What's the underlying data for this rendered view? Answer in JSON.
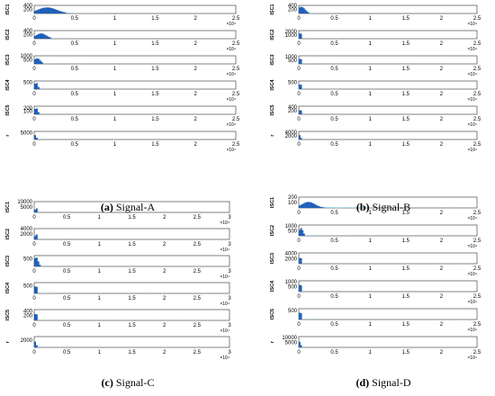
{
  "colors": {
    "bar": "#1f5fb8",
    "tail": "#6ec6e8",
    "axis": "#000000"
  },
  "chart_data": [
    {
      "type": "bar",
      "panel_letter": "(a)",
      "panel_title": "Signal-A",
      "x_max_label": "2.5",
      "x_ticks": [
        "0",
        "0.5",
        "1",
        "1.5",
        "2",
        "2.5"
      ],
      "x_exponent": "×10⁴",
      "series": [
        {
          "name": "ISC1",
          "yticks": [
            "400",
            "200"
          ],
          "ymax": 400,
          "peak": 300,
          "peak_pos": 0.06,
          "spread": 0.09,
          "tail": 0.06
        },
        {
          "name": "ISC2",
          "yticks": [
            "400",
            "200"
          ],
          "ymax": 400,
          "peak": 260,
          "peak_pos": 0.03,
          "spread": 0.05,
          "tail": 0.05
        },
        {
          "name": "ISC3",
          "yticks": [
            "1000",
            "500"
          ],
          "ymax": 1000,
          "peak": 700,
          "peak_pos": 0.01,
          "spread": 0.03,
          "tail": 0.03
        },
        {
          "name": "ISC4",
          "yticks": [
            "500"
          ],
          "ymax": 600,
          "peak": 480,
          "peak_pos": 0.005,
          "spread": 0.015,
          "tail": 0.02
        },
        {
          "name": "ISC5",
          "yticks": [
            "200",
            "100"
          ],
          "ymax": 250,
          "peak": 200,
          "peak_pos": 0.005,
          "spread": 0.015,
          "tail": 0.02
        },
        {
          "name": "r",
          "yticks": [
            "5000"
          ],
          "ymax": 6000,
          "peak": 5000,
          "peak_pos": 0.003,
          "spread": 0.006,
          "tail": 0.01
        }
      ]
    },
    {
      "type": "bar",
      "panel_letter": "(b)",
      "panel_title": "Signal-B",
      "x_max_label": "2.5",
      "x_ticks": [
        "0",
        "0.5",
        "1",
        "1.5",
        "2",
        "2.5"
      ],
      "x_exponent": "×10⁴",
      "series": [
        {
          "name": "ISC1",
          "yticks": [
            "400",
            "200"
          ],
          "ymax": 400,
          "peak": 330,
          "peak_pos": 0.01,
          "spread": 0.04,
          "tail": 0.04
        },
        {
          "name": "ISC2",
          "yticks": [
            "2000",
            "1000"
          ],
          "ymax": 2200,
          "peak": 1900,
          "peak_pos": 0.004,
          "spread": 0.01,
          "tail": 0.02
        },
        {
          "name": "ISC3",
          "yticks": [
            "1000",
            "500"
          ],
          "ymax": 1100,
          "peak": 900,
          "peak_pos": 0.004,
          "spread": 0.01,
          "tail": 0.02
        },
        {
          "name": "ISC4",
          "yticks": [
            "500"
          ],
          "ymax": 600,
          "peak": 450,
          "peak_pos": 0.004,
          "spread": 0.01,
          "tail": 0.02
        },
        {
          "name": "ISC5",
          "yticks": [
            "400",
            "200"
          ],
          "ymax": 450,
          "peak": 300,
          "peak_pos": 0.004,
          "spread": 0.01,
          "tail": 0.02
        },
        {
          "name": "r",
          "yticks": [
            "4000",
            "2000"
          ],
          "ymax": 4500,
          "peak": 3800,
          "peak_pos": 0.003,
          "spread": 0.006,
          "tail": 0.01
        }
      ]
    },
    {
      "type": "bar",
      "panel_letter": "(c)",
      "panel_title": "Signal-C",
      "x_max_label": "3",
      "x_ticks": [
        "0",
        "0.5",
        "1",
        "1.5",
        "2",
        "2.5",
        "3"
      ],
      "x_exponent": "×10⁴",
      "series": [
        {
          "name": "ISC1",
          "yticks": [
            "10000",
            "5000"
          ],
          "ymax": 10000,
          "peak": 5000,
          "peak_pos": 0.005,
          "spread": 0.008,
          "tail": 0.01
        },
        {
          "name": "ISC2",
          "yticks": [
            "4000",
            "2000"
          ],
          "ymax": 4000,
          "peak": 2500,
          "peak_pos": 0.005,
          "spread": 0.008,
          "tail": 0.01
        },
        {
          "name": "ISC3",
          "yticks": [
            "500"
          ],
          "ymax": 700,
          "peak": 600,
          "peak_pos": 0.005,
          "spread": 0.02,
          "tail": 0.02
        },
        {
          "name": "ISC4",
          "yticks": [
            "500"
          ],
          "ymax": 700,
          "peak": 600,
          "peak_pos": 0.004,
          "spread": 0.01,
          "tail": 0.015
        },
        {
          "name": "ISC5",
          "yticks": [
            "400",
            "200"
          ],
          "ymax": 450,
          "peak": 350,
          "peak_pos": 0.004,
          "spread": 0.01,
          "tail": 0.015
        },
        {
          "name": "r",
          "yticks": [
            "2000"
          ],
          "ymax": 3000,
          "peak": 2500,
          "peak_pos": 0.003,
          "spread": 0.006,
          "tail": 0.01
        }
      ]
    },
    {
      "type": "bar",
      "panel_letter": "(d)",
      "panel_title": "Signal-D",
      "x_max_label": "2.5",
      "x_ticks": [
        "0",
        "0.5",
        "1",
        "1.5",
        "2",
        "2.5"
      ],
      "x_exponent": "×10⁴",
      "series": [
        {
          "name": "ISC1",
          "yticks": [
            "200",
            "100"
          ],
          "ymax": 200,
          "peak": 110,
          "peak_pos": 0.05,
          "spread": 0.07,
          "tail": 0.2
        },
        {
          "name": "ISC2",
          "yticks": [
            "1000",
            "500"
          ],
          "ymax": 1100,
          "peak": 800,
          "peak_pos": 0.008,
          "spread": 0.02,
          "tail": 0.04
        },
        {
          "name": "ISC3",
          "yticks": [
            "4000",
            "2000"
          ],
          "ymax": 4200,
          "peak": 3000,
          "peak_pos": 0.004,
          "spread": 0.01,
          "tail": 0.02
        },
        {
          "name": "ISC4",
          "yticks": [
            "1000",
            "500"
          ],
          "ymax": 1100,
          "peak": 900,
          "peak_pos": 0.004,
          "spread": 0.01,
          "tail": 0.02
        },
        {
          "name": "ISC5",
          "yticks": [
            "500"
          ],
          "ymax": 600,
          "peak": 500,
          "peak_pos": 0.004,
          "spread": 0.01,
          "tail": 0.02
        },
        {
          "name": "r",
          "yticks": [
            "10000",
            "5000"
          ],
          "ymax": 11000,
          "peak": 9000,
          "peak_pos": 0.003,
          "spread": 0.006,
          "tail": 0.01
        }
      ]
    }
  ]
}
